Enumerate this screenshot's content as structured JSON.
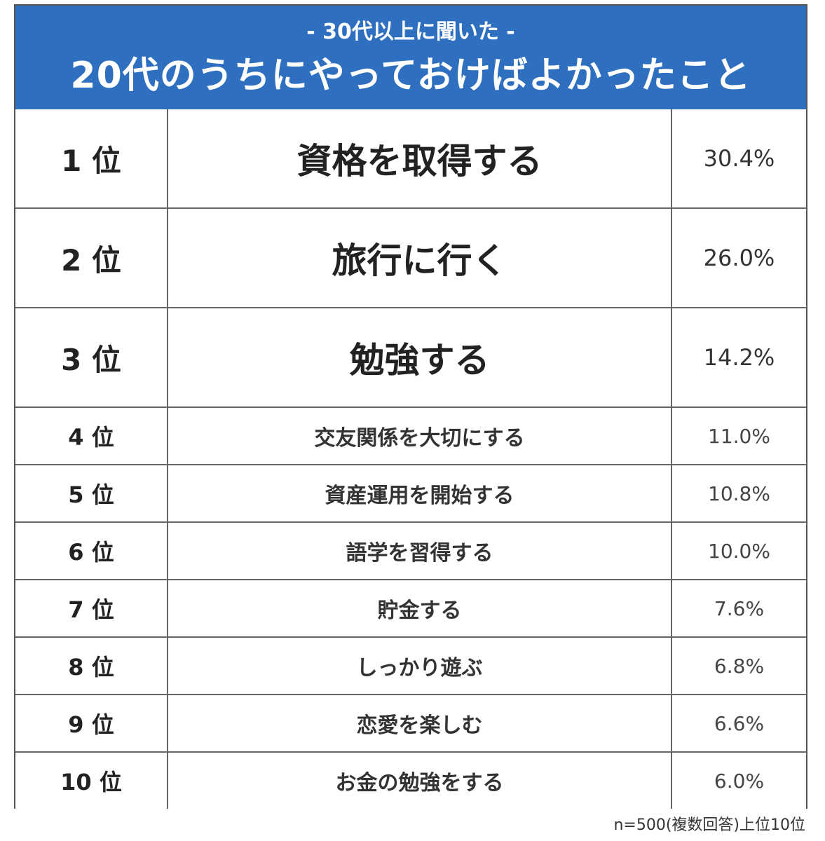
{
  "header": {
    "subtitle": "- 30代以上に聞いた -",
    "title": "20代のうちにやっておけばよかったこと",
    "bg_color": "#2f6fc0"
  },
  "chart_data": {
    "type": "table",
    "title": "20代のうちにやっておけばよかったこと",
    "subtitle": "- 30代以上に聞いた -",
    "rows": [
      {
        "rank": "1 位",
        "item": "資格を取得する",
        "percent": "30.4%",
        "value": 30.4
      },
      {
        "rank": "2 位",
        "item": "旅行に行く",
        "percent": "26.0%",
        "value": 26.0
      },
      {
        "rank": "3 位",
        "item": "勉強する",
        "percent": "14.2%",
        "value": 14.2
      },
      {
        "rank": "4 位",
        "item": "交友関係を大切にする",
        "percent": "11.0%",
        "value": 11.0
      },
      {
        "rank": "5 位",
        "item": "資産運用を開始する",
        "percent": "10.8%",
        "value": 10.8
      },
      {
        "rank": "6 位",
        "item": "語学を習得する",
        "percent": "10.0%",
        "value": 10.0
      },
      {
        "rank": "7 位",
        "item": "貯金する",
        "percent": "7.6%",
        "value": 7.6
      },
      {
        "rank": "8 位",
        "item": "しっかり遊ぶ",
        "percent": "6.8%",
        "value": 6.8
      },
      {
        "rank": "9 位",
        "item": "恋愛を楽しむ",
        "percent": "6.6%",
        "value": 6.6
      },
      {
        "rank": "10 位",
        "item": "お金の勉強をする",
        "percent": "6.0%",
        "value": 6.0
      }
    ]
  },
  "footer": {
    "note": "n=500(複数回答)上位10位"
  }
}
